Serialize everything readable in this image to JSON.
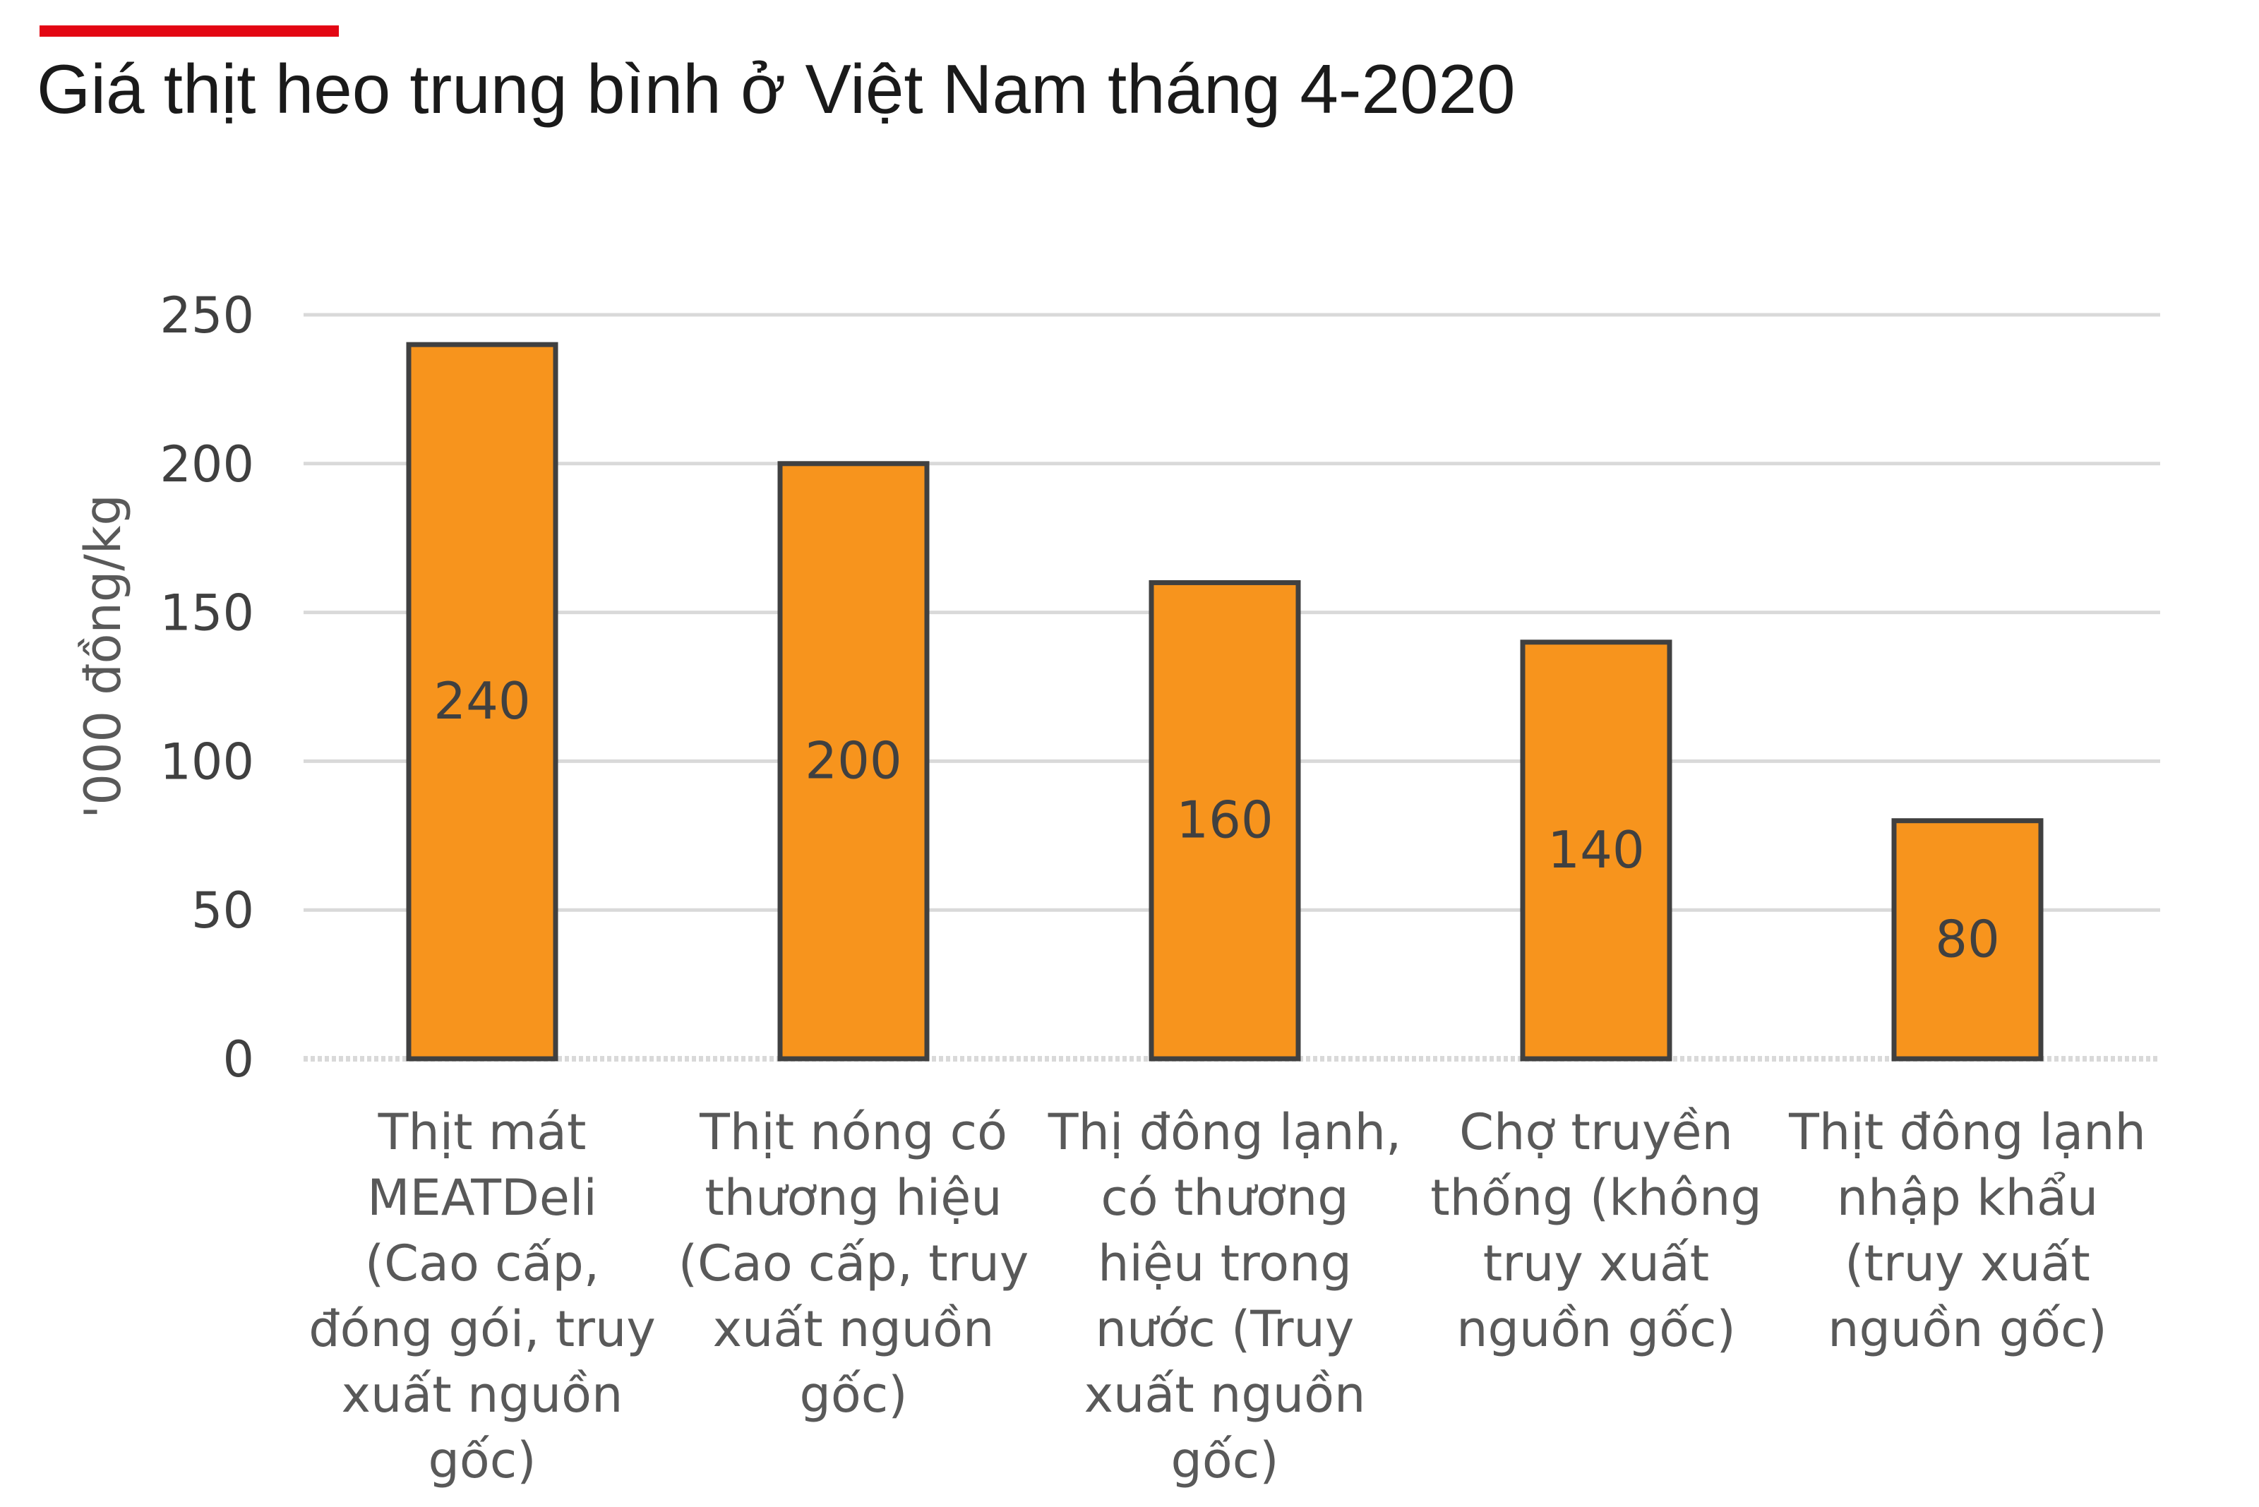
{
  "colors": {
    "accent": "#e30613",
    "bar_fill": "#f7941d",
    "bar_stroke": "#404040",
    "grid": "#d9d9d9"
  },
  "chart_data": {
    "type": "bar",
    "title": "Giá thịt heo trung bình ở Việt Nam tháng 4-2020",
    "ylabel": "'000 đồng/kg",
    "xlabel": "",
    "ylim": [
      0,
      250
    ],
    "yticks": [
      0,
      50,
      100,
      150,
      200,
      250
    ],
    "grid": true,
    "categories": [
      [
        "Thịt mát",
        "MEATDeli",
        "(Cao cấp,",
        "đóng gói, truy",
        "xuất nguồn",
        "gốc)"
      ],
      [
        "Thịt nóng có",
        "thương hiệu",
        "(Cao cấp, truy",
        "xuất nguồn",
        "gốc)"
      ],
      [
        "Thị đông lạnh,",
        "có thương",
        "hiệu trong",
        "nước (Truy",
        "xuất nguồn",
        "gốc)"
      ],
      [
        "Chợ truyền",
        "thống (không",
        "truy xuất",
        "nguồn gốc)"
      ],
      [
        "Thịt đông lạnh",
        "nhập khẩu",
        "(truy xuất",
        "nguồn gốc)"
      ]
    ],
    "values": [
      240,
      200,
      160,
      140,
      80
    ],
    "data_labels": [
      "240",
      "200",
      "160",
      "140",
      "80"
    ]
  }
}
